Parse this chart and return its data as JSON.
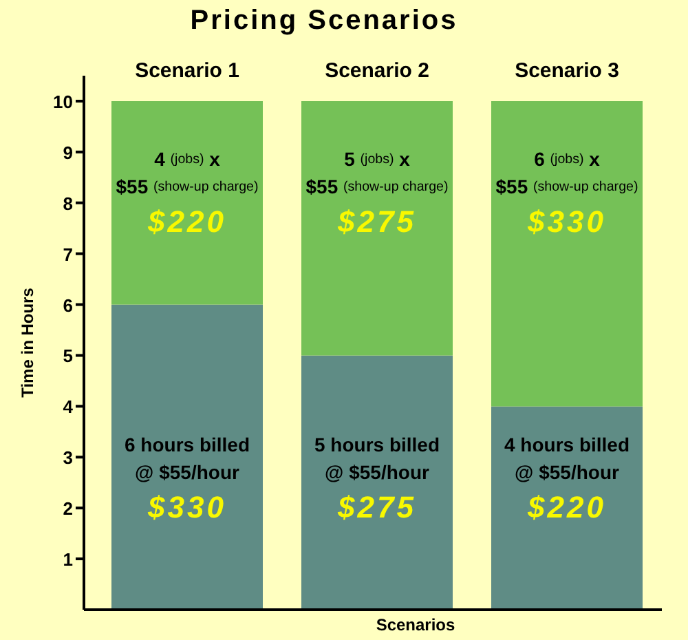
{
  "chart_data": {
    "type": "bar",
    "title": "Pricing Scenarios",
    "xlabel": "Scenarios",
    "ylabel": "Time in Hours",
    "categories": [
      "Scenario 1",
      "Scenario 2",
      "Scenario 3"
    ],
    "series": [
      {
        "color": "#5f8c85",
        "values": [
          6,
          5,
          4
        ],
        "value_labels": [
          "6 hours billed\n@ $55/hour\n$330",
          "5 hours billed\n@ $55/hour\n$275",
          "4 hours billed\n@ $55/hour\n$220"
        ]
      },
      {
        "color": "#75c157",
        "values": [
          4,
          5,
          6
        ],
        "value_labels": [
          "4 (jobs) x\n$55 (show-up charge)\n$220",
          "5 (jobs) x\n$55 (show-up charge)\n$275",
          "6 (jobs) x\n$55 (show-up charge)\n$330"
        ]
      }
    ],
    "stacked": true,
    "ylim": [
      0,
      10.5
    ],
    "yticks": [
      1,
      2,
      3,
      4,
      5,
      6,
      7,
      8,
      9,
      10
    ]
  }
}
